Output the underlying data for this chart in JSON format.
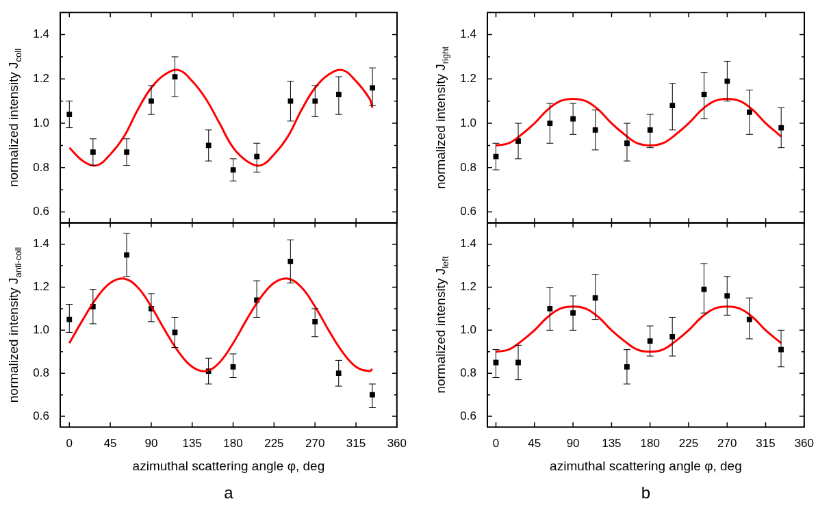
{
  "chart_data": [
    {
      "type": "scatter",
      "ylabel": "normalized intensity J$_{coll}$",
      "tick_labels": "y",
      "xlim": [
        -10,
        360
      ],
      "xticks": [
        0,
        45,
        90,
        135,
        180,
        225,
        270,
        315,
        360
      ],
      "ylim": [
        0.55,
        1.5
      ],
      "yticks": [
        0.6,
        {
          "value": 0.7,
          "label": null
        },
        0.8,
        {
          "value": 0.9,
          "label": null
        },
        {
          "value": 1,
          "label": "1.0"
        },
        {
          "value": 1.1,
          "label": null
        },
        1.2,
        {
          "value": 1.3,
          "label": null
        },
        1.4
      ],
      "x": [
        0,
        26,
        63,
        90,
        116,
        153,
        180,
        206,
        243,
        270,
        296,
        333
      ],
      "series": [
        {
          "color": "#000000",
          "marker": "square",
          "values": [
            1.04,
            0.87,
            0.87,
            1.1,
            1.21,
            0.9,
            0.79,
            0.85,
            1.1,
            1.1,
            1.13,
            1.16
          ],
          "errors": [
            [
              0.98,
              1.1
            ],
            [
              0.81,
              0.93
            ],
            [
              0.81,
              0.93
            ],
            [
              1.04,
              1.17
            ],
            [
              1.12,
              1.3
            ],
            [
              0.83,
              0.97
            ],
            [
              0.74,
              0.84
            ],
            [
              0.78,
              0.91
            ],
            [
              1.01,
              1.19
            ],
            [
              1.03,
              1.17
            ],
            [
              1.04,
              1.21
            ],
            [
              1.08,
              1.25
            ]
          ]
        },
        {
          "type": "line",
          "color": "#ff0000",
          "line_style": "solid",
          "marker": "none",
          "x": [
            0,
            15,
            30,
            45,
            60,
            75,
            90,
            105,
            120,
            135,
            150,
            165,
            180,
            195,
            210,
            225,
            240,
            255,
            270,
            285,
            300,
            315,
            330,
            333
          ],
          "values": [
            0.89,
            0.83,
            0.81,
            0.86,
            0.94,
            1.06,
            1.16,
            1.22,
            1.24,
            1.19,
            1.11,
            1.0,
            0.89,
            0.83,
            0.81,
            0.86,
            0.94,
            1.06,
            1.16,
            1.22,
            1.24,
            1.19,
            1.11,
            1.07
          ]
        }
      ]
    },
    {
      "type": "scatter",
      "ylabel": "normalized intensity J$_{right}$",
      "tick_labels": "y",
      "xlim": [
        -10,
        360
      ],
      "xticks": [
        0,
        45,
        90,
        135,
        180,
        225,
        270,
        315,
        360
      ],
      "ylim": [
        0.55,
        1.5
      ],
      "yticks": [
        0.6,
        {
          "value": 0.7,
          "label": null
        },
        0.8,
        {
          "value": 0.9,
          "label": null
        },
        {
          "value": 1,
          "label": "1.0"
        },
        {
          "value": 1.1,
          "label": null
        },
        1.2,
        {
          "value": 1.3,
          "label": null
        },
        1.4
      ],
      "x": [
        0,
        26,
        63,
        90,
        116,
        153,
        180,
        206,
        243,
        270,
        296,
        333
      ],
      "series": [
        {
          "color": "#000000",
          "marker": "square",
          "values": [
            0.85,
            0.92,
            1.0,
            1.02,
            0.97,
            0.91,
            0.97,
            1.08,
            1.13,
            1.19,
            1.05,
            0.98
          ],
          "errors": [
            [
              0.79,
              0.91
            ],
            [
              0.84,
              1.0
            ],
            [
              0.91,
              1.09
            ],
            [
              0.95,
              1.09
            ],
            [
              0.88,
              1.06
            ],
            [
              0.83,
              1.0
            ],
            [
              0.89,
              1.04
            ],
            [
              0.97,
              1.18
            ],
            [
              1.02,
              1.23
            ],
            [
              1.1,
              1.28
            ],
            [
              0.95,
              1.15
            ],
            [
              0.89,
              1.07
            ]
          ]
        },
        {
          "type": "line",
          "color": "#ff0000",
          "line_style": "solid",
          "marker": "none",
          "x": [
            0,
            15,
            30,
            45,
            60,
            75,
            90,
            105,
            120,
            135,
            150,
            165,
            180,
            195,
            210,
            225,
            240,
            255,
            270,
            285,
            300,
            315,
            330,
            333
          ],
          "values": [
            0.9,
            0.91,
            0.95,
            1.0,
            1.06,
            1.1,
            1.11,
            1.1,
            1.06,
            1.0,
            0.95,
            0.91,
            0.9,
            0.91,
            0.95,
            1.0,
            1.06,
            1.1,
            1.11,
            1.1,
            1.06,
            1.0,
            0.95,
            0.94
          ]
        }
      ]
    },
    {
      "type": "scatter",
      "ylabel": "normalized intensity J$_{anti-coll}$",
      "xlabel": "azimuthal scattering angle φ, deg",
      "annotations": [
        "a"
      ],
      "xlim": [
        -10,
        360
      ],
      "xticks": [
        0,
        45,
        90,
        135,
        180,
        225,
        270,
        315,
        360
      ],
      "ylim": [
        0.55,
        1.5
      ],
      "yticks": [
        0.6,
        {
          "value": 0.7,
          "label": null
        },
        0.8,
        {
          "value": 0.9,
          "label": null
        },
        {
          "value": 1,
          "label": "1.0"
        },
        {
          "value": 1.1,
          "label": null
        },
        1.2,
        {
          "value": 1.3,
          "label": null
        },
        1.4
      ],
      "x": [
        0,
        26,
        63,
        90,
        116,
        153,
        180,
        206,
        243,
        270,
        296,
        333
      ],
      "series": [
        {
          "color": "#000000",
          "marker": "square",
          "values": [
            1.05,
            1.11,
            1.35,
            1.1,
            0.99,
            0.81,
            0.83,
            1.14,
            1.32,
            1.04,
            0.8,
            0.7
          ],
          "errors": [
            [
              0.99,
              1.12
            ],
            [
              1.03,
              1.19
            ],
            [
              1.25,
              1.45
            ],
            [
              1.04,
              1.17
            ],
            [
              0.92,
              1.06
            ],
            [
              0.75,
              0.87
            ],
            [
              0.78,
              0.89
            ],
            [
              1.06,
              1.23
            ],
            [
              1.22,
              1.42
            ],
            [
              0.97,
              1.1
            ],
            [
              0.74,
              0.86
            ],
            [
              0.64,
              0.75
            ]
          ]
        },
        {
          "type": "line",
          "color": "#ff0000",
          "line_style": "solid",
          "marker": "none",
          "x": [
            0,
            15,
            30,
            45,
            60,
            75,
            90,
            105,
            120,
            135,
            150,
            165,
            180,
            195,
            210,
            225,
            240,
            255,
            270,
            285,
            300,
            315,
            330,
            333
          ],
          "values": [
            0.94,
            1.05,
            1.15,
            1.22,
            1.24,
            1.2,
            1.11,
            1.0,
            0.9,
            0.83,
            0.81,
            0.85,
            0.94,
            1.05,
            1.15,
            1.22,
            1.24,
            1.2,
            1.11,
            1.0,
            0.9,
            0.83,
            0.81,
            0.82
          ]
        }
      ]
    },
    {
      "type": "scatter",
      "ylabel": "normalized intensity J$_{left}$",
      "xlabel": "azimuthal scattering angle φ, deg",
      "annotations": [
        "b"
      ],
      "xlim": [
        -10,
        360
      ],
      "xticks": [
        0,
        45,
        90,
        135,
        180,
        225,
        270,
        315,
        360
      ],
      "ylim": [
        0.55,
        1.5
      ],
      "yticks": [
        0.6,
        {
          "value": 0.7,
          "label": null
        },
        0.8,
        {
          "value": 0.9,
          "label": null
        },
        {
          "value": 1,
          "label": "1.0"
        },
        {
          "value": 1.1,
          "label": null
        },
        1.2,
        {
          "value": 1.3,
          "label": null
        },
        1.4
      ],
      "x": [
        0,
        26,
        63,
        90,
        116,
        153,
        180,
        206,
        243,
        270,
        296,
        333
      ],
      "series": [
        {
          "color": "#000000",
          "marker": "square",
          "values": [
            0.85,
            0.85,
            1.1,
            1.08,
            1.15,
            0.83,
            0.95,
            0.97,
            1.19,
            1.16,
            1.05,
            0.91
          ],
          "errors": [
            [
              0.78,
              0.91
            ],
            [
              0.77,
              0.93
            ],
            [
              1.0,
              1.2
            ],
            [
              1.0,
              1.16
            ],
            [
              1.05,
              1.26
            ],
            [
              0.75,
              0.91
            ],
            [
              0.88,
              1.02
            ],
            [
              0.88,
              1.06
            ],
            [
              1.08,
              1.31
            ],
            [
              1.07,
              1.25
            ],
            [
              0.96,
              1.15
            ],
            [
              0.83,
              1.0
            ]
          ]
        },
        {
          "type": "line",
          "color": "#ff0000",
          "line_style": "solid",
          "marker": "none",
          "x": [
            0,
            15,
            30,
            45,
            60,
            75,
            90,
            105,
            120,
            135,
            150,
            165,
            180,
            195,
            210,
            225,
            240,
            255,
            270,
            285,
            300,
            315,
            330,
            333
          ],
          "values": [
            0.9,
            0.91,
            0.95,
            1.0,
            1.06,
            1.1,
            1.11,
            1.1,
            1.06,
            1.0,
            0.95,
            0.91,
            0.9,
            0.91,
            0.95,
            1.0,
            1.06,
            1.1,
            1.11,
            1.1,
            1.06,
            1.0,
            0.95,
            0.94
          ]
        }
      ]
    }
  ]
}
